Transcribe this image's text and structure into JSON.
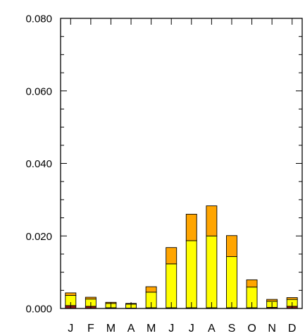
{
  "chart_data": {
    "type": "bar",
    "stacked": true,
    "categories": [
      "J",
      "F",
      "M",
      "A",
      "M",
      "J",
      "J",
      "A",
      "S",
      "O",
      "N",
      "D"
    ],
    "series": [
      {
        "color": "#8b1a1a",
        "values": [
          0.0008,
          0.0006,
          0.0002,
          0.0001,
          0.0002,
          0.0002,
          0.0002,
          0.0002,
          0.0002,
          0.0002,
          0.0003,
          0.0006
        ]
      },
      {
        "color": "#ffff00",
        "values": [
          0.0028,
          0.002,
          0.0012,
          0.0011,
          0.0043,
          0.0121,
          0.0185,
          0.0198,
          0.0141,
          0.0057,
          0.0017,
          0.0019
        ]
      },
      {
        "color": "#ffa500",
        "values": [
          0.0007,
          0.0005,
          0.0003,
          0.0002,
          0.0015,
          0.0045,
          0.0073,
          0.0083,
          0.0058,
          0.002,
          0.0005,
          0.0005
        ]
      }
    ],
    "yticks": [
      "0.000",
      "0.020",
      "0.040",
      "0.060",
      "0.080"
    ],
    "ylim": [
      0,
      0.08
    ],
    "grid": false,
    "legend": "none",
    "title": "",
    "xlabel": "",
    "ylabel": ""
  }
}
